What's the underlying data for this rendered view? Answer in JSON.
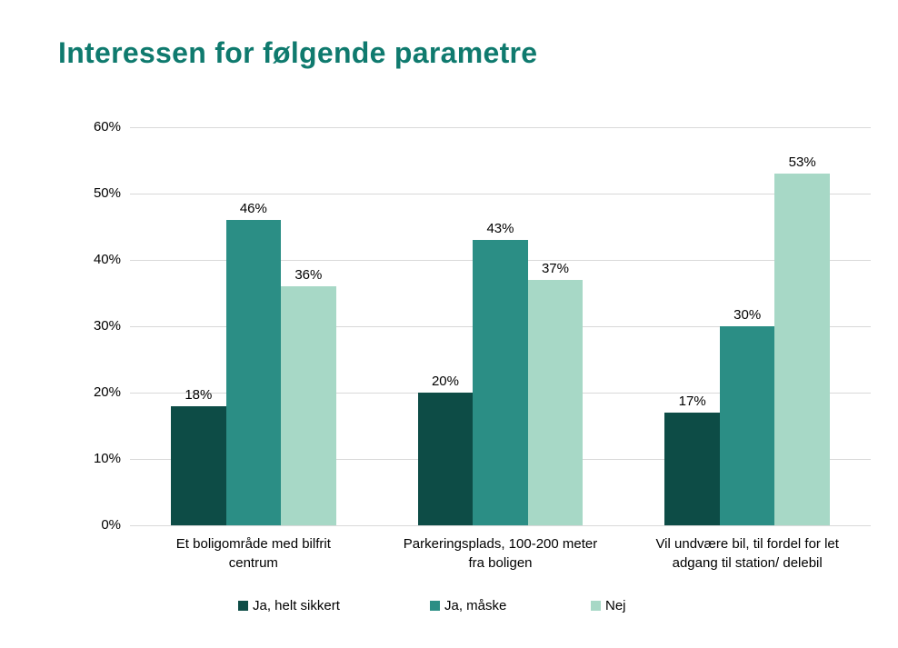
{
  "title": "Interessen for følgende parametre",
  "chart_data": {
    "type": "bar",
    "title": "Interessen for følgende parametre",
    "categories": [
      "Et boligområde med bilfrit\ncentrum",
      "Parkeringsplads, 100-200 meter\nfra boligen",
      "Vil undvære bil, til fordel for let\nadgang til station/ delebil"
    ],
    "series": [
      {
        "name": "Ja, helt sikkert",
        "color": "#0d4c46",
        "values": [
          18,
          20,
          17
        ]
      },
      {
        "name": "Ja, måske",
        "color": "#2b8e85",
        "values": [
          46,
          43,
          30
        ]
      },
      {
        "name": "Nej",
        "color": "#a7d8c6",
        "values": [
          36,
          37,
          53
        ]
      }
    ],
    "value_suffix": "%",
    "yticks": [
      "0%",
      "10%",
      "20%",
      "30%",
      "40%",
      "50%",
      "60%"
    ],
    "ylim": [
      0,
      60
    ],
    "grid": true,
    "data_labels": true,
    "legend_position": "bottom",
    "xlabel": "",
    "ylabel": ""
  },
  "style": {
    "title_color": "#0f7a6e",
    "gridline_color": "#d9d9d9",
    "text_color": "#000000",
    "background": "#ffffff"
  }
}
